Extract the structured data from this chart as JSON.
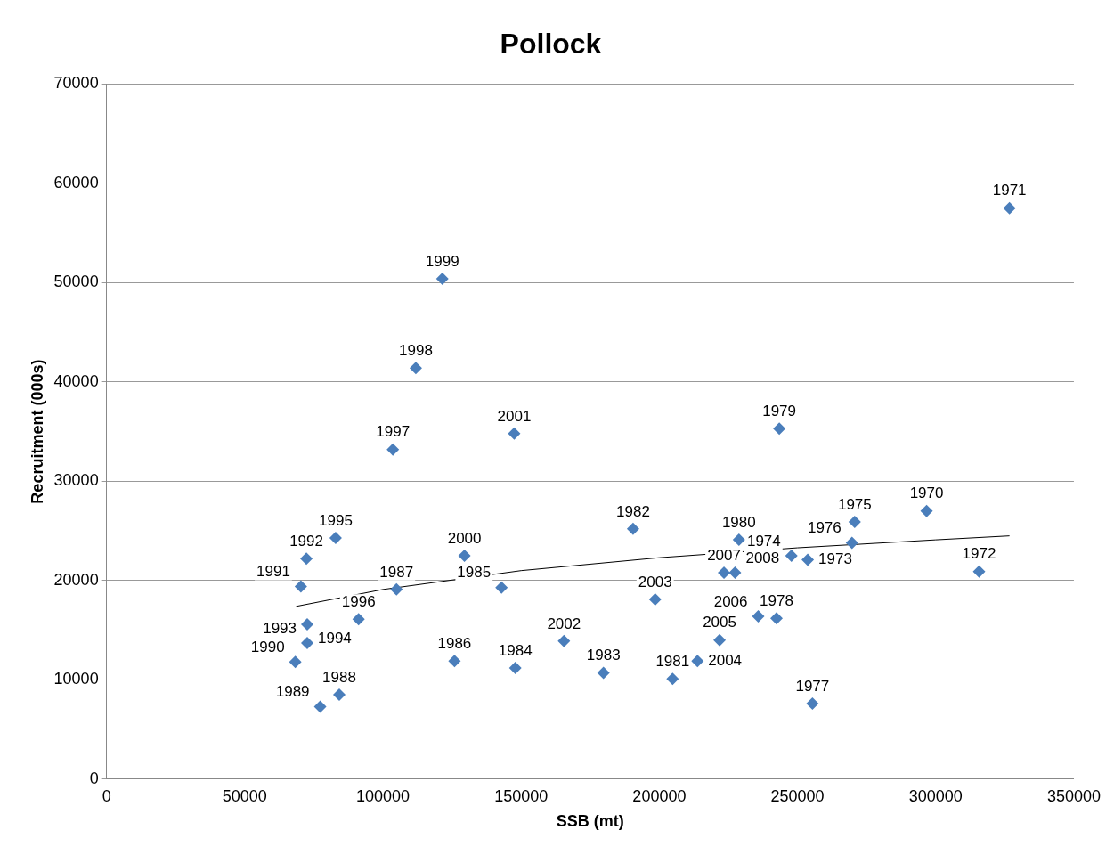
{
  "chart_data": {
    "type": "scatter",
    "title": "Pollock",
    "xlabel": "SSB (mt)",
    "ylabel": "Recruitment (000s)",
    "xlim": [
      0,
      350000
    ],
    "xticks": [
      0,
      50000,
      100000,
      150000,
      200000,
      250000,
      300000,
      350000
    ],
    "ylim": [
      0,
      70000
    ],
    "yticks": [
      0,
      10000,
      20000,
      30000,
      40000,
      50000,
      60000,
      70000
    ],
    "grid": "y",
    "legend": false,
    "marker": "diamond",
    "series": [
      {
        "color": "#4a7ebb",
        "x": [
          296700,
          326700,
          315700,
          253700,
          247800,
          270700,
          269700,
          255400,
          242400,
          243400,
          228800,
          204800,
          190500,
          179800,
          147900,
          142900,
          125900,
          104900,
          84200,
          77300,
          68300,
          70300,
          72300,
          72600,
          72600,
          82900,
          91200,
          103600,
          111900,
          121500,
          129500,
          147500,
          165500,
          198500,
          213800,
          221800,
          235800,
          223400,
          227400
        ],
        "values": [
          27000,
          57500,
          20900,
          22100,
          22500,
          25900,
          23800,
          7600,
          16200,
          35300,
          24100,
          10100,
          25200,
          10700,
          11200,
          19300,
          11900,
          19100,
          8500,
          7300,
          11800,
          19400,
          22200,
          13700,
          15600,
          24300,
          16100,
          33200,
          41400,
          50400,
          22500,
          34800,
          13900,
          18100,
          11900,
          14000,
          16400,
          20800,
          20800
        ]
      },
      {
        "type": "line",
        "color": "#000000",
        "marker": "none",
        "x": [
          68600,
          100000,
          150000,
          200000,
          250000,
          300000,
          326700
        ],
        "values": [
          17400,
          19100,
          21000,
          22300,
          23300,
          24100,
          24500
        ]
      }
    ],
    "annotations": [
      {
        "text": "1970",
        "x": 296700,
        "y": 27000
      },
      {
        "text": "1971",
        "x": 326700,
        "y": 57500
      },
      {
        "text": "1972",
        "x": 315700,
        "y": 20900
      },
      {
        "text": "1973",
        "x": 253700,
        "y": 22100
      },
      {
        "text": "1974",
        "x": 247800,
        "y": 22500
      },
      {
        "text": "1975",
        "x": 270700,
        "y": 25900
      },
      {
        "text": "1976",
        "x": 269700,
        "y": 23800
      },
      {
        "text": "1977",
        "x": 255400,
        "y": 7600
      },
      {
        "text": "1978",
        "x": 242400,
        "y": 16200
      },
      {
        "text": "1979",
        "x": 243400,
        "y": 35300
      },
      {
        "text": "1980",
        "x": 228800,
        "y": 24100
      },
      {
        "text": "1981",
        "x": 204800,
        "y": 10100
      },
      {
        "text": "1982",
        "x": 190500,
        "y": 25200
      },
      {
        "text": "1983",
        "x": 179800,
        "y": 10700
      },
      {
        "text": "1984",
        "x": 147900,
        "y": 11200
      },
      {
        "text": "1985",
        "x": 142900,
        "y": 19300
      },
      {
        "text": "1986",
        "x": 125900,
        "y": 11900
      },
      {
        "text": "1987",
        "x": 104900,
        "y": 19100
      },
      {
        "text": "1988",
        "x": 84200,
        "y": 8500
      },
      {
        "text": "1989",
        "x": 77300,
        "y": 7300
      },
      {
        "text": "1990",
        "x": 68300,
        "y": 11800
      },
      {
        "text": "1991",
        "x": 70300,
        "y": 19400
      },
      {
        "text": "1992",
        "x": 72300,
        "y": 22200
      },
      {
        "text": "1993",
        "x": 72600,
        "y": 13700
      },
      {
        "text": "1994",
        "x": 72600,
        "y": 15600
      },
      {
        "text": "1995",
        "x": 82900,
        "y": 24300
      },
      {
        "text": "1996",
        "x": 91200,
        "y": 16100
      },
      {
        "text": "1997",
        "x": 103600,
        "y": 33200
      },
      {
        "text": "1998",
        "x": 111900,
        "y": 41400
      },
      {
        "text": "1999",
        "x": 121500,
        "y": 50400
      },
      {
        "text": "2000",
        "x": 129500,
        "y": 22500
      },
      {
        "text": "2001",
        "x": 147500,
        "y": 34800
      },
      {
        "text": "2002",
        "x": 165500,
        "y": 13900
      },
      {
        "text": "2003",
        "x": 198500,
        "y": 18100
      },
      {
        "text": "2004",
        "x": 213800,
        "y": 11900
      },
      {
        "text": "2005",
        "x": 221800,
        "y": 14000
      },
      {
        "text": "2006",
        "x": 235800,
        "y": 16400
      },
      {
        "text": "2007",
        "x": 223400,
        "y": 20800
      },
      {
        "text": "2008",
        "x": 227400,
        "y": 20800
      }
    ]
  }
}
